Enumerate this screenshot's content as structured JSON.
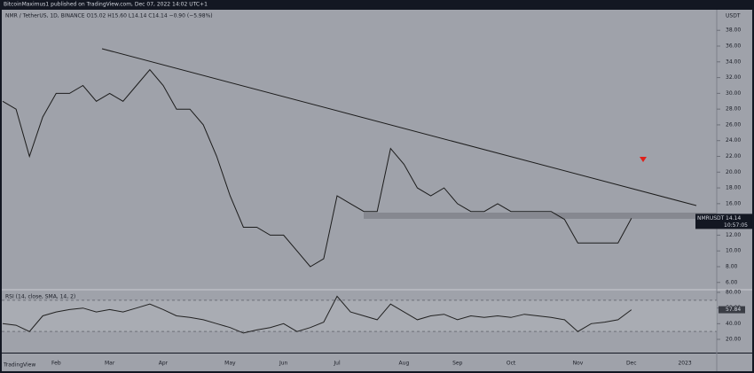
{
  "header": {
    "publisher": "BitcoinMaximus1 published on TradingView.com, Dec 07, 2022 14:02 UTC+1",
    "footer": "TradingView"
  },
  "chart_data": [
    {
      "type": "line",
      "title": "NMR / TetherUS, 1D, BINANCE  O15.02 H15.60 L14.14 C14.14 −0.90 (−5.98%)",
      "axis_label": "USDT",
      "countdown": "10:57:05",
      "categories": [
        null,
        null,
        null,
        null,
        "Feb",
        null,
        null,
        null,
        "Mar",
        null,
        null,
        null,
        "Apr",
        null,
        null,
        null,
        null,
        "May",
        null,
        null,
        null,
        "Jun",
        null,
        null,
        null,
        "Jul",
        null,
        null,
        null,
        null,
        "Aug",
        null,
        null,
        null,
        "Sep",
        null,
        null,
        null,
        "Oct",
        null,
        null,
        null,
        null,
        "Nov",
        null,
        null,
        null,
        "Dec",
        null,
        null,
        null,
        "2023"
      ],
      "series": [
        {
          "name": "NMRUSDT",
          "color": "#1c1c1c",
          "values": [
            29,
            28,
            22,
            27,
            30,
            30,
            31,
            29,
            30,
            29,
            31,
            33,
            31,
            28,
            28,
            26,
            22,
            17,
            13,
            13,
            12,
            12,
            10,
            8,
            9,
            17,
            16,
            15,
            15,
            23,
            21,
            18,
            17,
            18,
            16,
            15,
            15,
            16,
            15,
            15,
            15,
            15,
            14,
            11,
            11,
            11,
            11,
            14.14,
            null,
            null,
            null,
            null
          ]
        }
      ],
      "ylim": [
        5.3,
        40.5
      ],
      "yticks": [
        {
          "value": 6,
          "label": "6.00"
        },
        {
          "value": 8,
          "label": "8.00"
        },
        {
          "value": 10,
          "label": "10.00"
        },
        {
          "value": 12,
          "label": "12.00"
        },
        {
          "value": 14,
          "label": "14.00"
        },
        {
          "value": 16,
          "label": "16.00"
        },
        {
          "value": 18,
          "label": "18.00"
        },
        {
          "value": 20,
          "label": "20.00"
        },
        {
          "value": 22,
          "label": "22.00"
        },
        {
          "value": 24,
          "label": "24.00"
        },
        {
          "value": 26,
          "label": "26.00"
        },
        {
          "value": 28,
          "label": "28.00"
        },
        {
          "value": 30,
          "label": "30.00"
        },
        {
          "value": 32,
          "label": "32.00"
        },
        {
          "value": 34,
          "label": "34.00"
        },
        {
          "value": 36,
          "label": "36.00"
        },
        {
          "value": 38,
          "label": "38.00"
        }
      ]
    },
    {
      "type": "line",
      "title": "RSI (14, close, SMA, 14, 2)",
      "series": [
        {
          "color": "#222222",
          "values": [
            40,
            38,
            30,
            50,
            55,
            58,
            60,
            55,
            58,
            55,
            60,
            65,
            58,
            50,
            48,
            45,
            40,
            35,
            28,
            32,
            35,
            40,
            30,
            35,
            42,
            75,
            55,
            50,
            45,
            65,
            55,
            45,
            50,
            52,
            45,
            50,
            48,
            50,
            48,
            52,
            50,
            48,
            45,
            30,
            40,
            42,
            45,
            57.84,
            null,
            null,
            null,
            null
          ]
        }
      ],
      "ylim": [
        3,
        83.4
      ],
      "bands": [
        30,
        70
      ],
      "yticks": [
        {
          "value": 20,
          "label": "20.00"
        },
        {
          "value": 40,
          "label": "40.00"
        },
        {
          "value": 60,
          "label": "60.00"
        },
        {
          "value": 80,
          "label": "80.00"
        }
      ]
    }
  ]
}
